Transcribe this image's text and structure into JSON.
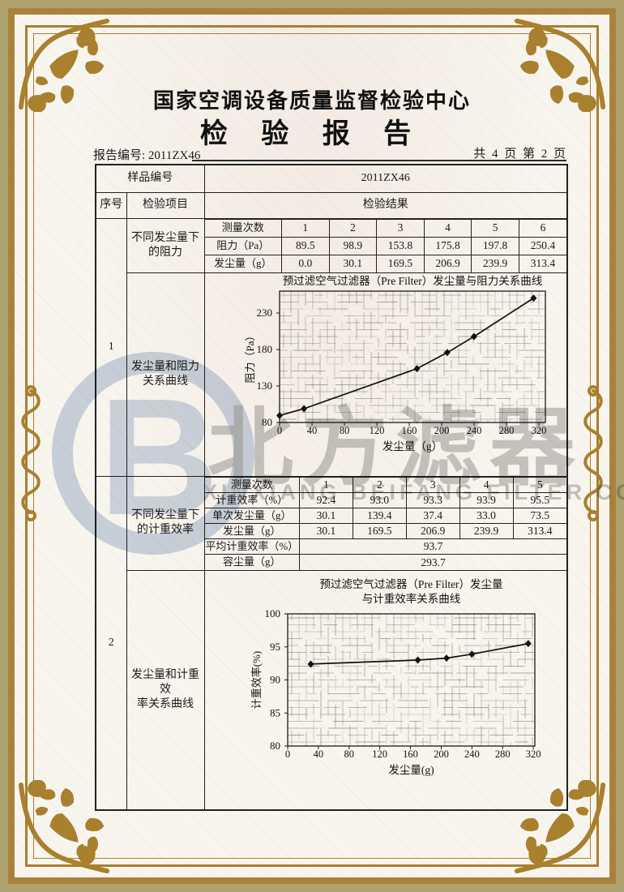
{
  "colors": {
    "frame_tan": "#b0a26e",
    "accent_gold": "#a8802e",
    "ink": "#1a1a1a",
    "watermark_blue": "#c7d3e5",
    "watermark_grey": "#969696"
  },
  "header": {
    "org": "国家空调设备质量监督检验中心",
    "title": "检 验 报 告",
    "report_no": "报告编号: 2011ZX46",
    "page_info": "共 4 页 第 2 页"
  },
  "table": {
    "sample_no_label": "样品编号",
    "sample_no_value": "2011ZX46",
    "col_seq": "序号",
    "col_item": "检验项目",
    "col_result": "检验结果",
    "sections": [
      {
        "seq": "1",
        "item_data": "不同发尘量下\n的阻力",
        "item_chart": "发尘量和阻力\n关系曲线"
      },
      {
        "seq": "2",
        "item_data": "不同发尘量下\n的计重效率",
        "item_chart": "发尘量和计重效\n率关系曲线"
      }
    ]
  },
  "table1": {
    "header_label": "测量次数",
    "headers": [
      "1",
      "2",
      "3",
      "4",
      "5",
      "6"
    ],
    "rows": [
      {
        "label": "阻力（Pa）",
        "values": [
          "89.5",
          "98.9",
          "153.8",
          "175.8",
          "197.8",
          "250.4"
        ]
      },
      {
        "label": "发尘量（g）",
        "values": [
          "0.0",
          "30.1",
          "169.5",
          "206.9",
          "239.9",
          "313.4"
        ]
      }
    ]
  },
  "table2": {
    "header_label": "测量次数",
    "headers": [
      "1",
      "2",
      "3",
      "4",
      "5"
    ],
    "rows": [
      {
        "label": "计重效率（%）",
        "values": [
          "92.4",
          "93.0",
          "93.3",
          "93.9",
          "95.5"
        ]
      },
      {
        "label": "单次发尘量（g）",
        "values": [
          "30.1",
          "139.4",
          "37.4",
          "33.0",
          "73.5"
        ]
      },
      {
        "label": "发尘量（g）",
        "values": [
          "30.1",
          "169.5",
          "206.9",
          "239.9",
          "313.4"
        ]
      }
    ],
    "summary_rows": [
      {
        "label": "平均计重效率（%）",
        "value": "93.7"
      },
      {
        "label": "容尘量（g）",
        "value": "293.7"
      }
    ]
  },
  "chart_data": [
    {
      "type": "line",
      "title": "预过滤空气过滤器（Pre Filter）发尘量与阻力关系曲线",
      "xlabel": "发尘量（g）",
      "ylabel": "阻力（Pa）",
      "x": [
        0,
        30.1,
        169.5,
        206.9,
        239.9,
        313.4
      ],
      "y": [
        89.5,
        98.9,
        153.8,
        175.8,
        197.8,
        250.4
      ],
      "xlim": [
        0,
        328
      ],
      "ylim": [
        80,
        260
      ],
      "xticks": [
        0,
        40,
        80,
        120,
        160,
        200,
        240,
        280,
        320
      ],
      "yticks": [
        80,
        130,
        180,
        230
      ],
      "grid": true,
      "marker": "diamond",
      "legend": "none"
    },
    {
      "type": "line",
      "title": "预过滤空气过滤器（Pre Filter）发尘量\n与计重效率关系曲线",
      "xlabel": "发尘量(g)",
      "ylabel": "计重效率(%)",
      "x": [
        30.1,
        169.5,
        206.9,
        239.9,
        313.4
      ],
      "y": [
        92.4,
        93.0,
        93.3,
        93.9,
        95.5
      ],
      "xlim": [
        0,
        322
      ],
      "ylim": [
        80,
        100
      ],
      "xticks": [
        0,
        40,
        80,
        120,
        160,
        200,
        240,
        280,
        320
      ],
      "yticks": [
        80,
        85,
        90,
        95,
        100
      ],
      "grid": true,
      "marker": "diamond",
      "legend": "none"
    }
  ],
  "watermark": {
    "logo_letter": "B",
    "cn": "北方滤器",
    "en": "XINXIANG BEIFANG FILTER CO.,LTD."
  }
}
